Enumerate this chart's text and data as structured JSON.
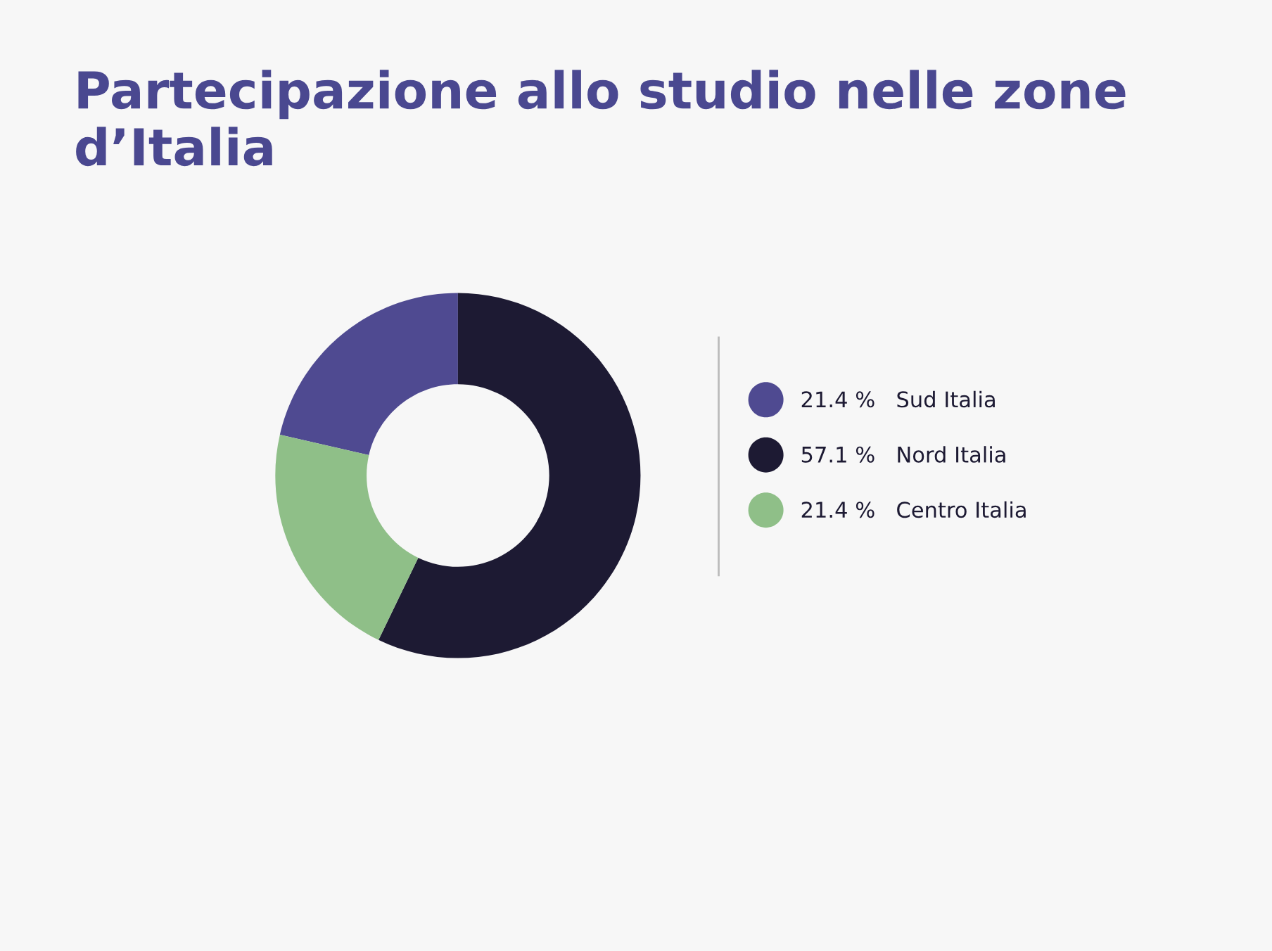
{
  "chart_data": {
    "type": "donut",
    "title": "Partecipazione allo studio nelle zone d’Italia",
    "categories": [
      "Sud Italia",
      "Nord Italia",
      "Centro Italia"
    ],
    "values": [
      21.4,
      57.1,
      21.4
    ],
    "colors": [
      "#4f4a91",
      "#1d1a33",
      "#8fbf88"
    ],
    "value_labels": [
      "21.4 %",
      "57.1 %",
      "21.4 %"
    ],
    "legend": "right"
  }
}
